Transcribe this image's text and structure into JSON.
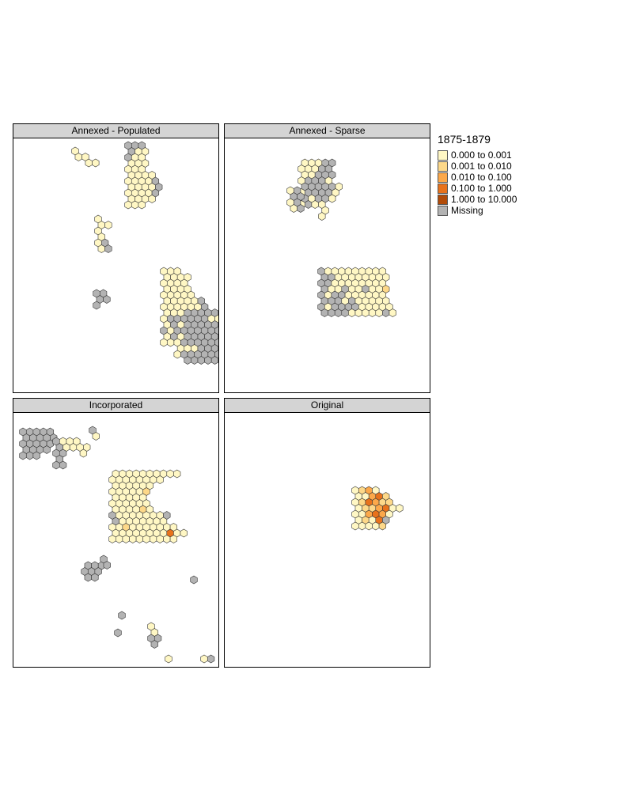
{
  "colors": {
    "c1": "#fff7c4",
    "c2": "#fdd889",
    "c3": "#fca84a",
    "c4": "#e8721c",
    "c5": "#b24b08",
    "missing": "#b3b3b3",
    "stroke": "#333333"
  },
  "panels": [
    {
      "title": "Annexed - Populated"
    },
    {
      "title": "Annexed - Sparse"
    },
    {
      "title": "Incorporated"
    },
    {
      "title": "Original"
    }
  ],
  "legend": {
    "title": "1875-1879",
    "items": [
      {
        "label": "0.000 to 0.001",
        "color": "#fff7c4"
      },
      {
        "label": "0.001 to 0.010",
        "color": "#fdd889"
      },
      {
        "label": "0.010 to 0.100",
        "color": "#fca84a"
      },
      {
        "label": "0.100 to 1.000",
        "color": "#e8721c"
      },
      {
        "label": "1.000 to 10.000",
        "color": "#b24b08"
      },
      {
        "label": "Missing",
        "color": "#b3b3b3"
      }
    ]
  }
}
